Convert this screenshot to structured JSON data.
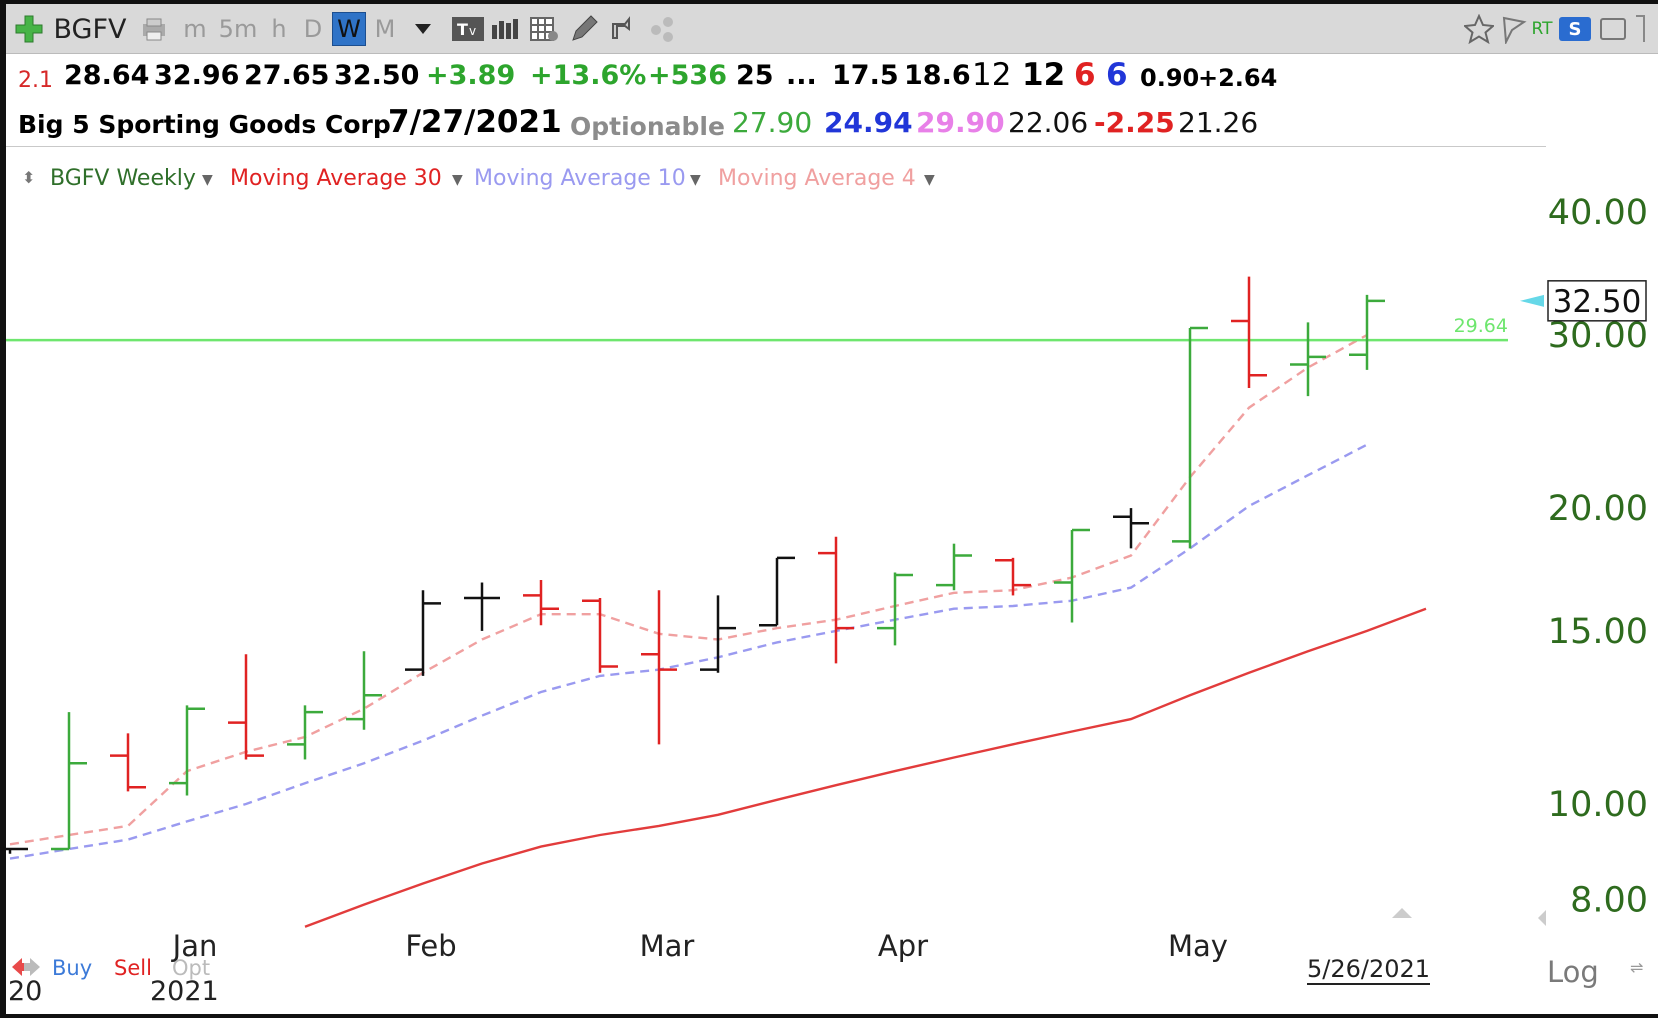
{
  "toolbar": {
    "symbol": "BGFV",
    "timeframes": [
      "m",
      "5m",
      "h",
      "D",
      "W",
      "M"
    ],
    "active_timeframe": "W",
    "icons": [
      "add-icon",
      "printer-icon",
      "dropdown-icon",
      "text-icon",
      "bar-chart-icon",
      "grid-icon",
      "pencil-icon",
      "share-icon",
      "dots-icon",
      "star-icon",
      "flag-icon",
      "rt-icon",
      "s-icon",
      "save-icon"
    ],
    "rt_label": "RT",
    "s_label": "S"
  },
  "quote_line1": {
    "first": "2.1",
    "open": "28.64",
    "high": "32.96",
    "low": "27.65",
    "close": "32.50",
    "change": "+3.89",
    "change_pct": "+13.6%",
    "volume_change": "+536",
    "v1": "25",
    "ellipsis": "...",
    "v2": "17.5",
    "v3": "18.6",
    "v4": "12",
    "v5": "12",
    "v6": "6",
    "v7": "6",
    "v8": "0.90",
    "v9": "+2.64"
  },
  "quote_line2": {
    "company": "Big 5 Sporting Goods Corp",
    "date": "7/27/2021",
    "optionable": "Optionable",
    "v1": "27.90",
    "v2": "24.94",
    "v3": "29.90",
    "v4": "22.06",
    "v5": "-2.25",
    "v6": "21.26"
  },
  "legend": {
    "series_main": "BGFV Weekly",
    "ma30": "Moving Average 30",
    "ma10": "Moving Average 10",
    "ma4": "Moving Average 4"
  },
  "colors": {
    "up": "#3caa3c",
    "down": "#e02222",
    "neutral": "#111111",
    "ma30": "#e23c3c",
    "ma10": "#9a9af0",
    "ma4": "#f0a0a0",
    "ref_line": "#6ee66e",
    "axis_text": "#2e6b1e",
    "cyan_marker": "#66d8e8"
  },
  "chart_data": {
    "type": "ohlc",
    "scale": "log",
    "ylim": [
      7.5,
      42
    ],
    "ytick_labels": [
      "40.00",
      "30.00",
      "20.00",
      "15.00",
      "10.00",
      "8.00"
    ],
    "yticks": [
      40,
      30,
      20,
      15,
      10,
      8
    ],
    "x_labels": [
      "Jan",
      "Feb",
      "Mar",
      "Apr",
      "May"
    ],
    "x_label_extras": [
      "20",
      "2021"
    ],
    "last_date": "5/26/2021",
    "last_price": 32.5,
    "last_price_label": "32.50",
    "reference_line": {
      "value": 29.64,
      "label": "29.64"
    },
    "bars": [
      {
        "o": 9.0,
        "h": 9.0,
        "l": 8.9,
        "c": 9.0,
        "dir": "neutral"
      },
      {
        "o": 9.0,
        "h": 12.4,
        "l": 9.0,
        "c": 11.0,
        "dir": "up"
      },
      {
        "o": 11.2,
        "h": 11.8,
        "l": 10.3,
        "c": 10.4,
        "dir": "down"
      },
      {
        "o": 10.5,
        "h": 12.6,
        "l": 10.2,
        "c": 12.5,
        "dir": "up"
      },
      {
        "o": 12.1,
        "h": 14.2,
        "l": 11.1,
        "c": 11.2,
        "dir": "down"
      },
      {
        "o": 11.5,
        "h": 12.6,
        "l": 11.1,
        "c": 12.4,
        "dir": "up"
      },
      {
        "o": 12.2,
        "h": 14.3,
        "l": 11.9,
        "c": 12.9,
        "dir": "up"
      },
      {
        "o": 13.7,
        "h": 16.5,
        "l": 13.5,
        "c": 16.0,
        "dir": "neutral"
      },
      {
        "o": 16.2,
        "h": 16.8,
        "l": 15.0,
        "c": 16.2,
        "dir": "neutral"
      },
      {
        "o": 16.3,
        "h": 16.9,
        "l": 15.2,
        "c": 15.8,
        "dir": "down"
      },
      {
        "o": 16.1,
        "h": 16.2,
        "l": 13.6,
        "c": 13.8,
        "dir": "down"
      },
      {
        "o": 14.2,
        "h": 16.5,
        "l": 11.5,
        "c": 13.7,
        "dir": "down"
      },
      {
        "o": 13.7,
        "h": 16.3,
        "l": 13.6,
        "c": 15.1,
        "dir": "neutral"
      },
      {
        "o": 15.2,
        "h": 17.8,
        "l": 15.2,
        "c": 17.8,
        "dir": "neutral"
      },
      {
        "o": 18.0,
        "h": 18.7,
        "l": 13.9,
        "c": 15.1,
        "dir": "down"
      },
      {
        "o": 15.1,
        "h": 17.2,
        "l": 14.5,
        "c": 17.1,
        "dir": "up"
      },
      {
        "o": 16.7,
        "h": 18.4,
        "l": 16.5,
        "c": 17.9,
        "dir": "up"
      },
      {
        "o": 17.7,
        "h": 17.8,
        "l": 16.3,
        "c": 16.7,
        "dir": "down"
      },
      {
        "o": 16.8,
        "h": 19.0,
        "l": 15.3,
        "c": 19.0,
        "dir": "up"
      },
      {
        "o": 19.6,
        "h": 20.0,
        "l": 18.2,
        "c": 19.3,
        "dir": "neutral"
      },
      {
        "o": 18.5,
        "h": 30.5,
        "l": 18.2,
        "c": 30.5,
        "dir": "up"
      },
      {
        "o": 31.0,
        "h": 34.4,
        "l": 26.5,
        "c": 27.3,
        "dir": "down"
      },
      {
        "o": 28.0,
        "h": 30.9,
        "l": 26.0,
        "c": 28.5,
        "dir": "up"
      },
      {
        "o": 28.64,
        "h": 32.96,
        "l": 27.65,
        "c": 32.5,
        "dir": "up"
      }
    ],
    "ma4": [
      9.1,
      9.3,
      9.5,
      10.8,
      11.3,
      11.7,
      12.5,
      13.6,
      14.7,
      15.6,
      15.6,
      14.9,
      14.7,
      15.1,
      15.4,
      15.9,
      16.4,
      16.5,
      17.0,
      17.9,
      21.5,
      25.3,
      27.8,
      30.0
    ],
    "ma10": [
      8.8,
      9.0,
      9.2,
      9.6,
      10.0,
      10.5,
      11.0,
      11.6,
      12.3,
      13.0,
      13.5,
      13.7,
      14.1,
      14.6,
      15.0,
      15.4,
      15.8,
      15.9,
      16.1,
      16.6,
      18.2,
      20.1,
      21.6,
      23.2
    ],
    "ma30_start_index": 5,
    "ma30": [
      7.5,
      7.9,
      8.3,
      8.7,
      9.05,
      9.3,
      9.5,
      9.75,
      10.1,
      10.45,
      10.8,
      11.15,
      11.5,
      11.85,
      12.2,
      12.9,
      13.6,
      14.3,
      15.0,
      15.8
    ]
  },
  "bottom": {
    "buy": "Buy",
    "sell": "Sell",
    "opt": "Opt",
    "log": "Log"
  }
}
